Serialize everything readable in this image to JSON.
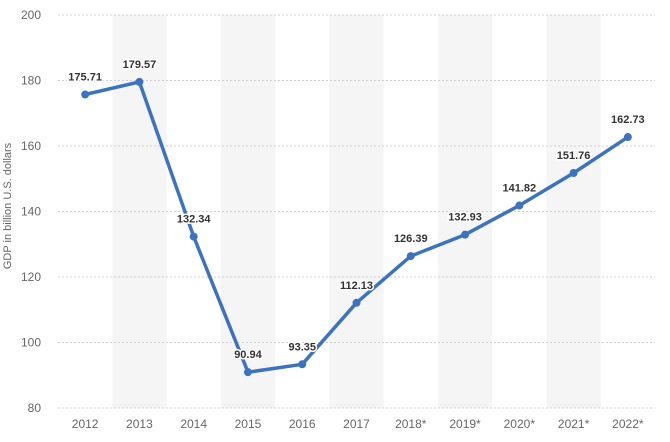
{
  "chart_data": {
    "type": "line",
    "categories": [
      "2012",
      "2013",
      "2014",
      "2015",
      "2016",
      "2017",
      "2018*",
      "2019*",
      "2020*",
      "2021*",
      "2022*"
    ],
    "series": [
      {
        "values": [
          175.71,
          179.57,
          132.34,
          90.94,
          93.35,
          112.13,
          126.39,
          132.93,
          141.82,
          151.76,
          162.73
        ],
        "color": "#3b73c0"
      }
    ],
    "data_labels": [
      "175.71",
      "179.57",
      "132.34",
      "90.94",
      "93.35",
      "112.13",
      "126.39",
      "132.93",
      "141.82",
      "151.76",
      "162.73"
    ],
    "ylabel": "GDP in billion U.S. dollars",
    "xlabel": "",
    "ylim": [
      80,
      200
    ],
    "yticks": [
      "80",
      "100",
      "120",
      "140",
      "160",
      "180",
      "200"
    ],
    "grid": true,
    "alternating_column_bands": true
  }
}
